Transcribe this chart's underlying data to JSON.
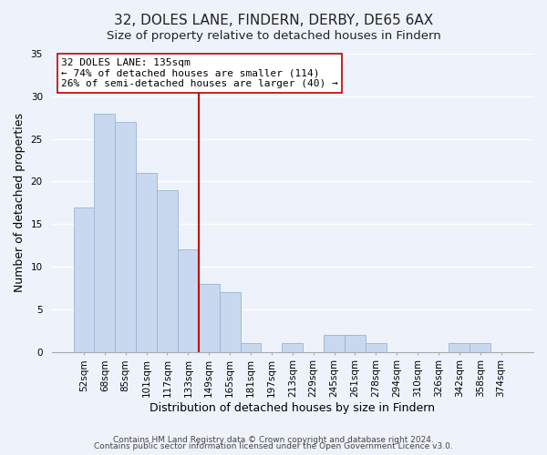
{
  "title": "32, DOLES LANE, FINDERN, DERBY, DE65 6AX",
  "subtitle": "Size of property relative to detached houses in Findern",
  "xlabel": "Distribution of detached houses by size in Findern",
  "ylabel": "Number of detached properties",
  "bar_labels": [
    "52sqm",
    "68sqm",
    "85sqm",
    "101sqm",
    "117sqm",
    "133sqm",
    "149sqm",
    "165sqm",
    "181sqm",
    "197sqm",
    "213sqm",
    "229sqm",
    "245sqm",
    "261sqm",
    "278sqm",
    "294sqm",
    "310sqm",
    "326sqm",
    "342sqm",
    "358sqm",
    "374sqm"
  ],
  "bar_values": [
    17,
    28,
    27,
    21,
    19,
    12,
    8,
    7,
    1,
    0,
    1,
    0,
    2,
    2,
    1,
    0,
    0,
    0,
    1,
    1,
    0
  ],
  "bar_color": "#c8d8ee",
  "bar_edge_color": "#9ab4d4",
  "reference_line_x": 5.5,
  "reference_line_color": "#cc0000",
  "annotation_title": "32 DOLES LANE: 135sqm",
  "annotation_line1": "← 74% of detached houses are smaller (114)",
  "annotation_line2": "26% of semi-detached houses are larger (40) →",
  "ylim": [
    0,
    35
  ],
  "yticks": [
    0,
    5,
    10,
    15,
    20,
    25,
    30,
    35
  ],
  "footnote1": "Contains HM Land Registry data © Crown copyright and database right 2024.",
  "footnote2": "Contains public sector information licensed under the Open Government Licence v3.0.",
  "background_color": "#eef2fa",
  "grid_color": "#ffffff",
  "title_fontsize": 11,
  "subtitle_fontsize": 9.5,
  "axis_label_fontsize": 9,
  "tick_fontsize": 7.5,
  "annotation_fontsize": 8,
  "footnote_fontsize": 6.5
}
